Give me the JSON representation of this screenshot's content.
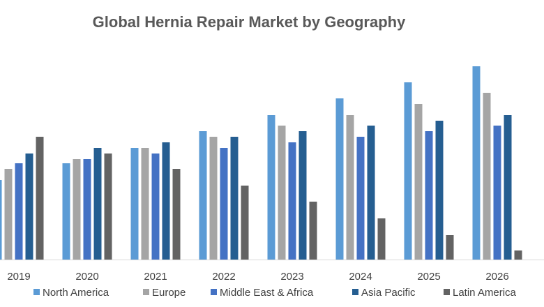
{
  "chart_data": {
    "type": "bar",
    "title": "Global Hernia Repair Market by Geography",
    "categories": [
      "2019",
      "2020",
      "2021",
      "2022",
      "2023",
      "2024",
      "2025",
      "2026"
    ],
    "series": [
      {
        "name": "North America",
        "color": "#5b9bd5",
        "values": [
          114,
          138,
          160,
          184,
          207,
          231,
          254,
          277
        ]
      },
      {
        "name": "Europe",
        "color": "#a5a5a5",
        "values": [
          130,
          144,
          160,
          176,
          192,
          207,
          223,
          239
        ]
      },
      {
        "name": "Middle East & Africa",
        "color": "#4472c4",
        "values": [
          138,
          144,
          152,
          160,
          168,
          176,
          184,
          192
        ]
      },
      {
        "name": "Asia Pacific",
        "color": "#255e91",
        "values": [
          152,
          160,
          168,
          176,
          184,
          192,
          199,
          207
        ]
      },
      {
        "name": "Latin America",
        "color": "#636363",
        "values": [
          176,
          152,
          130,
          106,
          83,
          59,
          35,
          13
        ]
      }
    ],
    "ylim": [
      0,
      300
    ],
    "legend": "bottom"
  }
}
